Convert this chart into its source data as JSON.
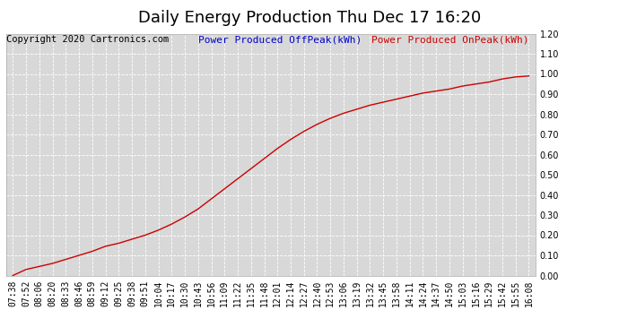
{
  "title": "Daily Energy Production Thu Dec 17 16:20",
  "copyright_text": "Copyright 2020 Cartronics.com",
  "legend_offpeak": "Power Produced OffPeak(kWh)",
  "legend_onpeak": "Power Produced OnPeak(kWh)",
  "offpeak_color": "#0000cc",
  "onpeak_color": "#cc0000",
  "line_color": "#cc0000",
  "bg_color": "#ffffff",
  "plot_bg_color": "#d8d8d8",
  "grid_color": "#ffffff",
  "ylim": [
    0.0,
    1.2
  ],
  "yticks": [
    0.0,
    0.1,
    0.2,
    0.3,
    0.4,
    0.5,
    0.6,
    0.7,
    0.8,
    0.9,
    1.0,
    1.1,
    1.2
  ],
  "x_labels": [
    "07:38",
    "07:52",
    "08:06",
    "08:20",
    "08:33",
    "08:46",
    "08:59",
    "09:12",
    "09:25",
    "09:38",
    "09:51",
    "10:04",
    "10:17",
    "10:30",
    "10:43",
    "10:56",
    "11:09",
    "11:22",
    "11:35",
    "11:48",
    "12:01",
    "12:14",
    "12:27",
    "12:40",
    "12:53",
    "13:06",
    "13:19",
    "13:32",
    "13:45",
    "13:58",
    "14:11",
    "14:24",
    "14:37",
    "14:50",
    "15:03",
    "15:16",
    "15:29",
    "15:42",
    "15:55",
    "16:08"
  ],
  "y_values": [
    0.0,
    0.03,
    0.045,
    0.06,
    0.08,
    0.1,
    0.12,
    0.145,
    0.16,
    0.18,
    0.2,
    0.225,
    0.255,
    0.29,
    0.33,
    0.38,
    0.43,
    0.48,
    0.53,
    0.58,
    0.63,
    0.675,
    0.715,
    0.75,
    0.78,
    0.805,
    0.825,
    0.845,
    0.86,
    0.875,
    0.89,
    0.905,
    0.915,
    0.925,
    0.94,
    0.95,
    0.96,
    0.975,
    0.985,
    0.99
  ],
  "title_fontsize": 13,
  "tick_fontsize": 7,
  "legend_fontsize": 8,
  "copyright_fontsize": 7.5
}
